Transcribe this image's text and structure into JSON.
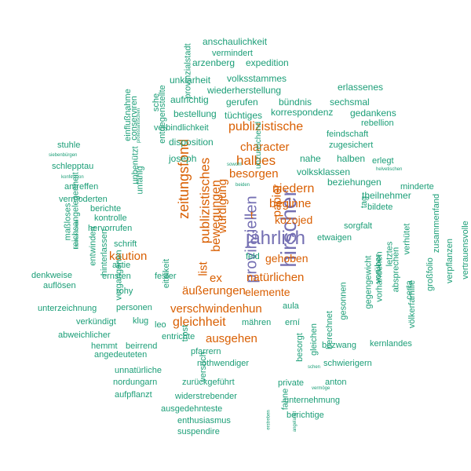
{
  "colors": {
    "primary": "#7570B3",
    "secondary": "#D95F02",
    "tertiary": "#1B9E77"
  },
  "words": [
    {
      "text": "hirscher",
      "color": "primary"
    },
    {
      "text": "jährlich",
      "color": "primary"
    },
    {
      "text": "provinziellen",
      "color": "primary"
    },
    {
      "text": "publizistische",
      "color": "secondary"
    },
    {
      "text": "character",
      "color": "secondary"
    },
    {
      "text": "halbes",
      "color": "secondary"
    },
    {
      "text": "besorgen",
      "color": "secondary"
    },
    {
      "text": "niedern",
      "color": "secondary"
    },
    {
      "text": "beginne",
      "color": "secondary"
    },
    {
      "text": "kozojed",
      "color": "secondary"
    },
    {
      "text": "gehoben",
      "color": "secondary"
    },
    {
      "text": "natürlichen",
      "color": "secondary"
    },
    {
      "text": "elemente",
      "color": "secondary"
    },
    {
      "text": "äußerungen",
      "color": "secondary"
    },
    {
      "text": "verschwindenhun",
      "color": "secondary"
    },
    {
      "text": "gleichheit",
      "color": "secondary"
    },
    {
      "text": "ausgehen",
      "color": "secondary"
    },
    {
      "text": "kaution",
      "color": "secondary"
    },
    {
      "text": "zeitungsfond",
      "color": "secondary"
    },
    {
      "text": "publizistisches",
      "color": "secondary"
    },
    {
      "text": "bewegungen",
      "color": "secondary"
    },
    {
      "text": "würdigung",
      "color": "secondary"
    },
    {
      "text": "list",
      "color": "secondary"
    },
    {
      "text": "ex",
      "color": "secondary"
    },
    {
      "text": "t",
      "color": "secondary"
    },
    {
      "text": "papier",
      "color": "secondary"
    },
    {
      "text": "anschaulichkeit",
      "color": "tertiary"
    },
    {
      "text": "vermindert",
      "color": "tertiary"
    },
    {
      "text": "arzenberg",
      "color": "tertiary"
    },
    {
      "text": "expedition",
      "color": "tertiary"
    },
    {
      "text": "unklarheit",
      "color": "tertiary"
    },
    {
      "text": "volksstammes",
      "color": "tertiary"
    },
    {
      "text": "wiederherstellung",
      "color": "tertiary"
    },
    {
      "text": "erlassenes",
      "color": "tertiary"
    },
    {
      "text": "aufrichtig",
      "color": "tertiary"
    },
    {
      "text": "gerufen",
      "color": "tertiary"
    },
    {
      "text": "bündnis",
      "color": "tertiary"
    },
    {
      "text": "sechsmal",
      "color": "tertiary"
    },
    {
      "text": "bestellung",
      "color": "tertiary"
    },
    {
      "text": "tüchtiges",
      "color": "tertiary"
    },
    {
      "text": "korrespondenz",
      "color": "tertiary"
    },
    {
      "text": "gedankens",
      "color": "tertiary"
    },
    {
      "text": "verbindlichkeit",
      "color": "tertiary"
    },
    {
      "text": "rebellion",
      "color": "tertiary"
    },
    {
      "text": "feindschaft",
      "color": "tertiary"
    },
    {
      "text": "disposition",
      "color": "tertiary"
    },
    {
      "text": "zugesichert",
      "color": "tertiary"
    },
    {
      "text": "joseph",
      "color": "tertiary"
    },
    {
      "text": "nahe",
      "color": "tertiary"
    },
    {
      "text": "halben",
      "color": "tertiary"
    },
    {
      "text": "erlegt",
      "color": "tertiary"
    },
    {
      "text": "volksklassen",
      "color": "tertiary"
    },
    {
      "text": "beziehungen",
      "color": "tertiary"
    },
    {
      "text": "minderte",
      "color": "tertiary"
    },
    {
      "text": "theilnehmer",
      "color": "tertiary"
    },
    {
      "text": "bildete",
      "color": "tertiary"
    },
    {
      "text": "etwaigen",
      "color": "tertiary"
    },
    {
      "text": "sorgfalt",
      "color": "tertiary"
    },
    {
      "text": "stuhle",
      "color": "tertiary"
    },
    {
      "text": "schlepptau",
      "color": "tertiary"
    },
    {
      "text": "antreffen",
      "color": "tertiary"
    },
    {
      "text": "vermoderten",
      "color": "tertiary"
    },
    {
      "text": "berichte",
      "color": "tertiary"
    },
    {
      "text": "kontrolle",
      "color": "tertiary"
    },
    {
      "text": "hervorrufen",
      "color": "tertiary"
    },
    {
      "text": "schrift",
      "color": "tertiary"
    },
    {
      "text": "aktie",
      "color": "tertiary"
    },
    {
      "text": "ernsten",
      "color": "tertiary"
    },
    {
      "text": "fester",
      "color": "tertiary"
    },
    {
      "text": "denkweise",
      "color": "tertiary"
    },
    {
      "text": "auflösen",
      "color": "tertiary"
    },
    {
      "text": "rohy",
      "color": "tertiary"
    },
    {
      "text": "unterzeichnung",
      "color": "tertiary"
    },
    {
      "text": "personen",
      "color": "tertiary"
    },
    {
      "text": "verkündigt",
      "color": "tertiary"
    },
    {
      "text": "klug",
      "color": "tertiary"
    },
    {
      "text": "leo",
      "color": "tertiary"
    },
    {
      "text": "abweichlicher",
      "color": "tertiary"
    },
    {
      "text": "entrichte",
      "color": "tertiary"
    },
    {
      "text": "hemmt",
      "color": "tertiary"
    },
    {
      "text": "beirrend",
      "color": "tertiary"
    },
    {
      "text": "angedeuteten",
      "color": "tertiary"
    },
    {
      "text": "pfarrern",
      "color": "tertiary"
    },
    {
      "text": "nothwendiger",
      "color": "tertiary"
    },
    {
      "text": "unnatürliche",
      "color": "tertiary"
    },
    {
      "text": "nordungarn",
      "color": "tertiary"
    },
    {
      "text": "aufpflanzt",
      "color": "tertiary"
    },
    {
      "text": "zurückgeführt",
      "color": "tertiary"
    },
    {
      "text": "widerstrebender",
      "color": "tertiary"
    },
    {
      "text": "ausgedehnteste",
      "color": "tertiary"
    },
    {
      "text": "enthusiasmus",
      "color": "tertiary"
    },
    {
      "text": "suspendire",
      "color": "tertiary"
    },
    {
      "text": "private",
      "color": "tertiary"
    },
    {
      "text": "anton",
      "color": "tertiary"
    },
    {
      "text": "unternehmung",
      "color": "tertiary"
    },
    {
      "text": "berichtige",
      "color": "tertiary"
    },
    {
      "text": "schwierigern",
      "color": "tertiary"
    },
    {
      "text": "bezwang",
      "color": "tertiary"
    },
    {
      "text": "kernlandes",
      "color": "tertiary"
    },
    {
      "text": "mähren",
      "color": "tertiary"
    },
    {
      "text": "erní",
      "color": "tertiary"
    },
    {
      "text": "aula",
      "color": "tertiary"
    },
    {
      "text": "feld",
      "color": "tertiary"
    },
    {
      "text": "sowohl",
      "color": "tertiary"
    },
    {
      "text": "beiden",
      "color": "tertiary"
    },
    {
      "text": "helvetischen",
      "color": "tertiary"
    },
    {
      "text": "siebenbürgen",
      "color": "tertiary"
    },
    {
      "text": "konfession",
      "color": "tertiary"
    },
    {
      "text": "schen",
      "color": "tertiary"
    },
    {
      "text": "vermöge",
      "color": "tertiary"
    },
    {
      "text": "provinzialstadt",
      "color": "tertiary"
    },
    {
      "text": "sche",
      "color": "tertiary"
    },
    {
      "text": "entgegenstellte",
      "color": "tertiary"
    },
    {
      "text": "conserviren",
      "color": "tertiary"
    },
    {
      "text": "einflußnahme",
      "color": "tertiary"
    },
    {
      "text": "protestantischen",
      "color": "tertiary"
    },
    {
      "text": "unbenützt",
      "color": "tertiary"
    },
    {
      "text": "unfähig",
      "color": "tertiary"
    },
    {
      "text": "reichsangelegenheit",
      "color": "tertiary"
    },
    {
      "text": "maßloses",
      "color": "tertiary"
    },
    {
      "text": "landeskirchen",
      "color": "tertiary"
    },
    {
      "text": "entwinden",
      "color": "tertiary"
    },
    {
      "text": "hinterlassen",
      "color": "tertiary"
    },
    {
      "text": "vergangenen",
      "color": "tertiary"
    },
    {
      "text": "eiteikeit",
      "color": "tertiary"
    },
    {
      "text": "trost",
      "color": "tertiary"
    },
    {
      "text": "versuch",
      "color": "tertiary"
    },
    {
      "text": "besorgt",
      "color": "tertiary"
    },
    {
      "text": "gleichen",
      "color": "tertiary"
    },
    {
      "text": "berechnet",
      "color": "tertiary"
    },
    {
      "text": "gesonnen",
      "color": "tertiary"
    },
    {
      "text": "gegengewicht",
      "color": "tertiary"
    },
    {
      "text": "vorhandenen",
      "color": "tertiary"
    },
    {
      "text": "vorüber",
      "color": "tertiary"
    },
    {
      "text": "absprechen",
      "color": "tertiary"
    },
    {
      "text": "letztes",
      "color": "tertiary"
    },
    {
      "text": "völkerfamilie",
      "color": "tertiary"
    },
    {
      "text": "verhütet",
      "color": "tertiary"
    },
    {
      "text": "certa",
      "color": "tertiary"
    },
    {
      "text": "zusammenfand",
      "color": "tertiary"
    },
    {
      "text": "großfolio",
      "color": "tertiary"
    },
    {
      "text": "verpflanzen",
      "color": "tertiary"
    },
    {
      "text": "vertrauensvolle",
      "color": "tertiary"
    },
    {
      "text": "unzureichend",
      "color": "tertiary"
    },
    {
      "text": "tag",
      "color": "tertiary"
    },
    {
      "text": "fahne",
      "color": "tertiary"
    },
    {
      "text": "erstreben",
      "color": "tertiary"
    },
    {
      "text": "angelangt",
      "color": "tertiary"
    },
    {
      "text": "gerwaldigen",
      "color": "tertiary"
    }
  ]
}
